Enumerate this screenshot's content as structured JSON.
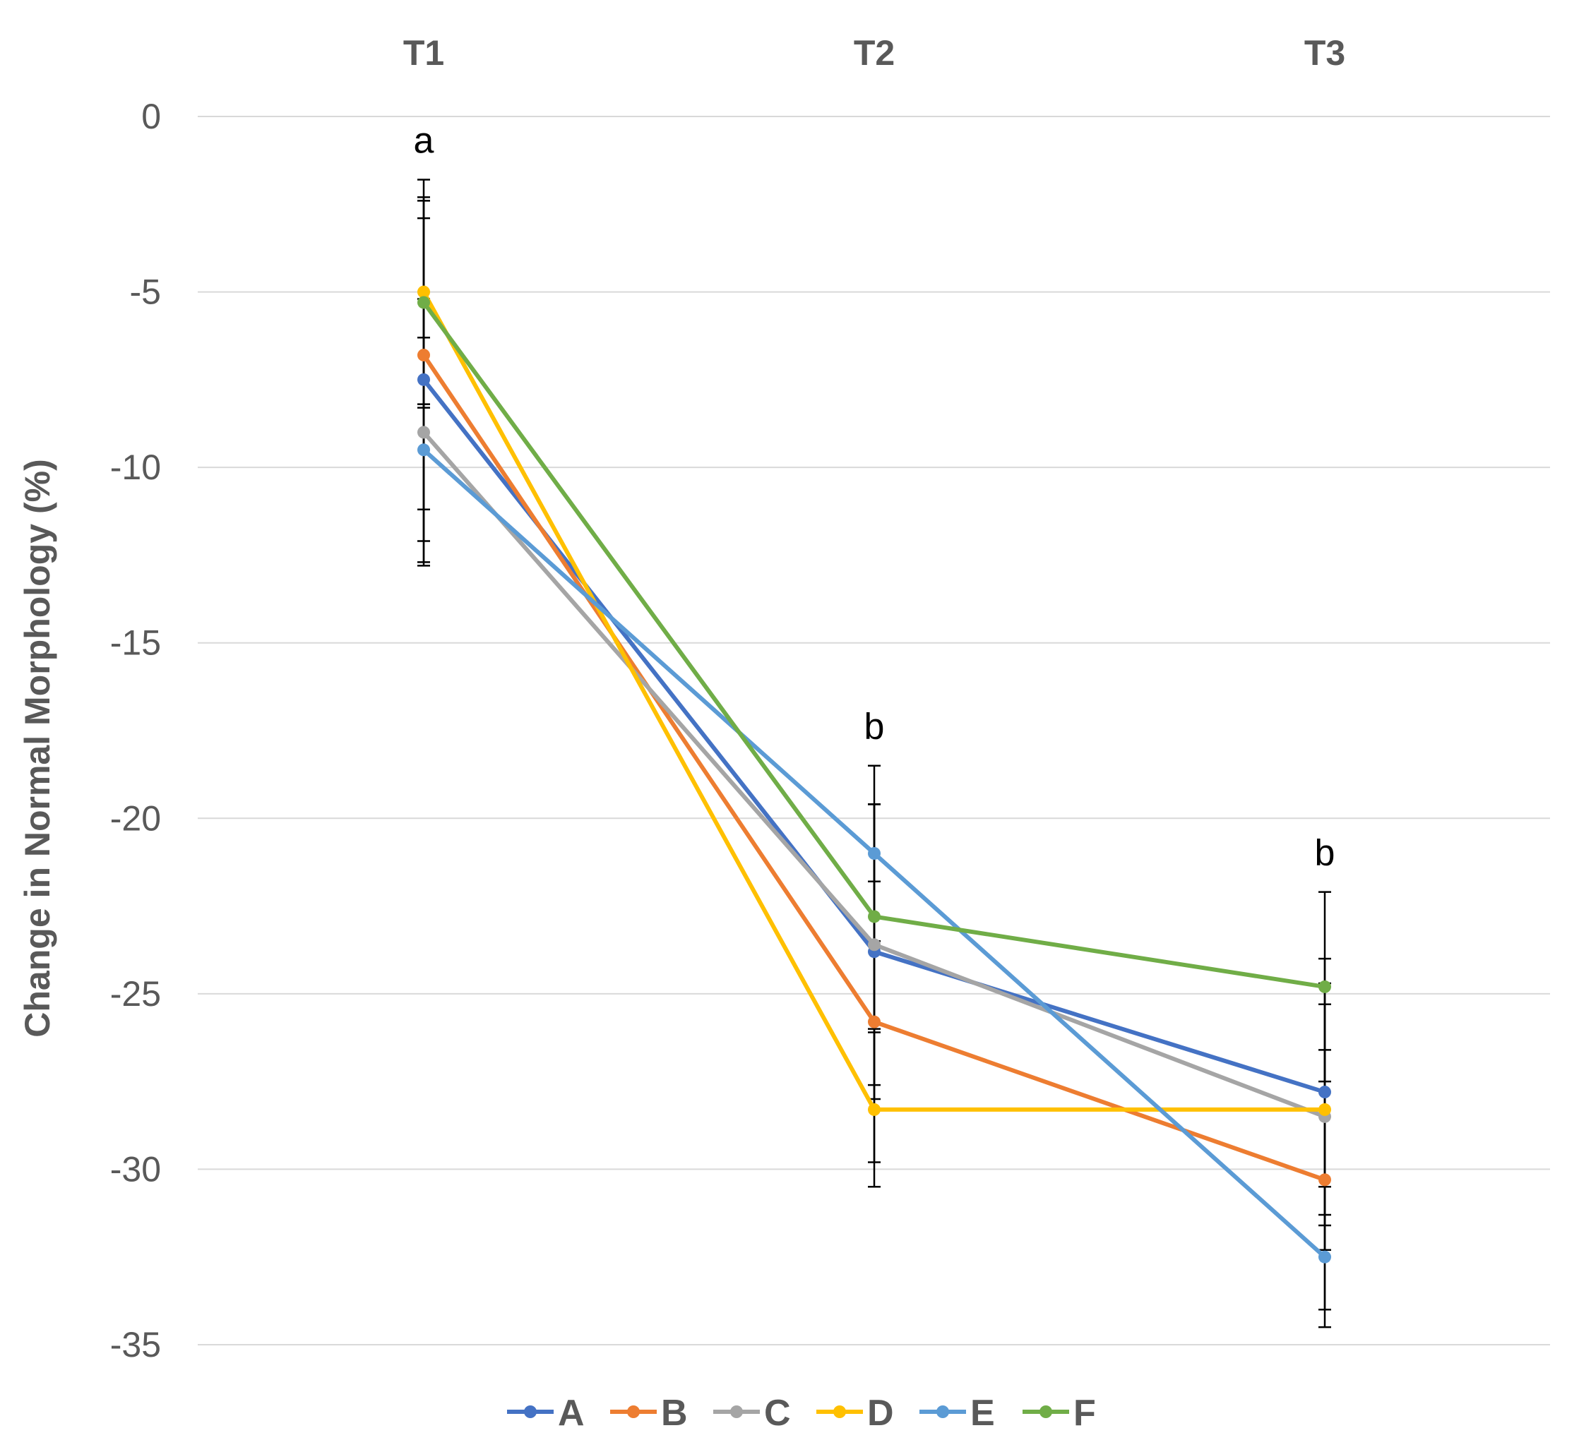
{
  "chart_data": {
    "type": "line",
    "title": "",
    "xlabel": "",
    "ylabel": "Change in Normal Morphology (%)",
    "categories": [
      "T1",
      "T2",
      "T3"
    ],
    "ylim": [
      -35,
      0
    ],
    "yticks": [
      0,
      -5,
      -10,
      -15,
      -20,
      -25,
      -30,
      -35
    ],
    "grid": true,
    "category_axis_position": "top",
    "legend_position": "bottom",
    "series": [
      {
        "name": "A",
        "color": "#4472C4",
        "values": [
          -7.5,
          -23.8,
          -27.8
        ],
        "errors": [
          4.6,
          4.2,
          3.8
        ]
      },
      {
        "name": "B",
        "color": "#ED7D31",
        "values": [
          -6.8,
          -25.8,
          -30.3
        ],
        "errors": [
          4.4,
          4.0,
          3.7
        ]
      },
      {
        "name": "C",
        "color": "#A5A5A5",
        "values": [
          -9.0,
          -23.6,
          -28.5
        ],
        "errors": [
          3.8,
          4.0,
          3.8
        ]
      },
      {
        "name": "D",
        "color": "#FFC000",
        "values": [
          -5.0,
          -28.3,
          -28.3
        ],
        "errors": [
          3.2,
          2.2,
          3.0
        ]
      },
      {
        "name": "E",
        "color": "#5B9BD5",
        "values": [
          -9.5,
          -21.0,
          -32.5
        ],
        "errors": [
          3.2,
          2.5,
          2.0
        ]
      },
      {
        "name": "F",
        "color": "#70AD47",
        "values": [
          -5.3,
          -22.8,
          -24.8
        ],
        "errors": [
          3.0,
          3.2,
          2.7
        ]
      }
    ],
    "annotations": [
      {
        "category": "T1",
        "text": "a"
      },
      {
        "category": "T2",
        "text": "b"
      },
      {
        "category": "T3",
        "text": "b"
      }
    ]
  }
}
